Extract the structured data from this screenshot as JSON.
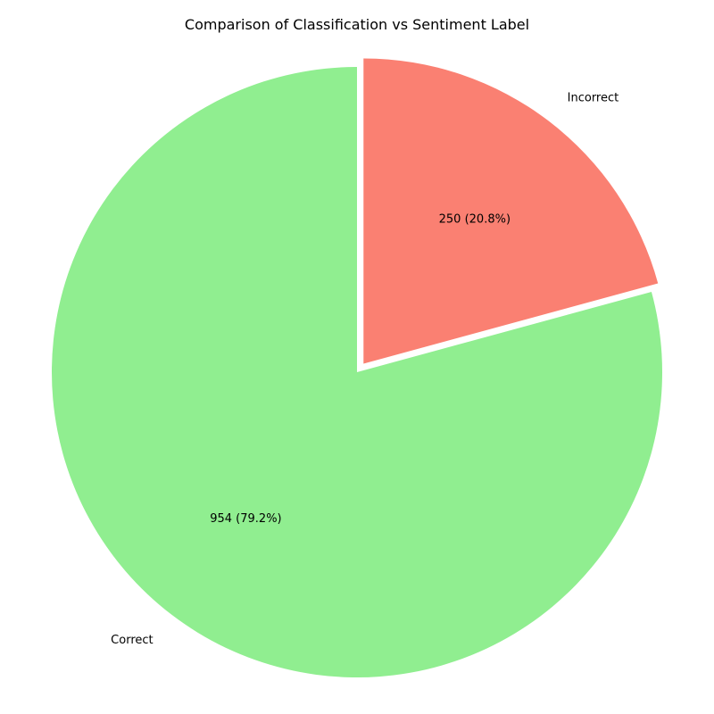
{
  "chart_data": {
    "type": "pie",
    "title": "Comparison of Classification vs Sentiment Label",
    "slices": [
      {
        "label": "Correct",
        "value": 954,
        "pct_label": "954 (79.2%)",
        "color": "#90EE90",
        "exploded": false
      },
      {
        "label": "Incorrect",
        "value": 250,
        "pct_label": "250 (20.8%)",
        "color": "#FA8072",
        "exploded": true
      }
    ],
    "start_angle_deg": 90,
    "direction": "counterclockwise",
    "legend": "none"
  }
}
